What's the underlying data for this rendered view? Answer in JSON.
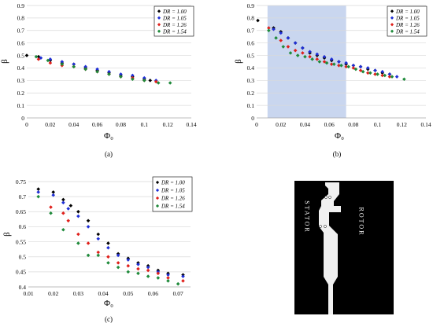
{
  "chart_data": [
    {
      "type": "scatter",
      "caption": "(a)",
      "xlabel": "Φ₀",
      "ylabel": "β",
      "xlim": [
        0,
        0.14
      ],
      "ylim": [
        0,
        0.9
      ],
      "xticks": [
        "0",
        "0.02",
        "0.04",
        "0.06",
        "0.08",
        "0.1",
        "0.12",
        "0.14"
      ],
      "yticks": [
        "0",
        "0.1",
        "0.2",
        "0.3",
        "0.4",
        "0.5",
        "0.6",
        "0.7",
        "0.8",
        "0.9"
      ],
      "grid": "horizontal",
      "legend_position": "top-right",
      "series": [
        {
          "name": "DR = 1.00",
          "color": "#000000",
          "points": [
            [
              0.0,
              0.5
            ],
            [
              0.01,
              0.49
            ],
            [
              0.02,
              0.46
            ],
            [
              0.03,
              0.44
            ],
            [
              0.04,
              0.43
            ],
            [
              0.05,
              0.4
            ],
            [
              0.06,
              0.38
            ],
            [
              0.07,
              0.36
            ],
            [
              0.08,
              0.34
            ],
            [
              0.09,
              0.33
            ],
            [
              0.1,
              0.31
            ],
            [
              0.105,
              0.3
            ]
          ]
        },
        {
          "name": "DR = 1.05",
          "color": "#1f2fd6",
          "points": [
            [
              0.012,
              0.48
            ],
            [
              0.02,
              0.47
            ],
            [
              0.03,
              0.45
            ],
            [
              0.04,
              0.43
            ],
            [
              0.05,
              0.41
            ],
            [
              0.06,
              0.39
            ],
            [
              0.07,
              0.37
            ],
            [
              0.08,
              0.35
            ],
            [
              0.09,
              0.34
            ],
            [
              0.1,
              0.32
            ],
            [
              0.11,
              0.3
            ]
          ]
        },
        {
          "name": "DR = 1.26",
          "color": "#e0201b",
          "points": [
            [
              0.01,
              0.47
            ],
            [
              0.02,
              0.44
            ],
            [
              0.03,
              0.42
            ],
            [
              0.04,
              0.41
            ],
            [
              0.05,
              0.39
            ],
            [
              0.06,
              0.37
            ],
            [
              0.07,
              0.35
            ],
            [
              0.08,
              0.33
            ],
            [
              0.09,
              0.32
            ],
            [
              0.1,
              0.3
            ],
            [
              0.11,
              0.29
            ]
          ]
        },
        {
          "name": "DR = 1.54",
          "color": "#1e8a3a",
          "points": [
            [
              0.008,
              0.49
            ],
            [
              0.018,
              0.46
            ],
            [
              0.03,
              0.43
            ],
            [
              0.04,
              0.41
            ],
            [
              0.05,
              0.39
            ],
            [
              0.06,
              0.37
            ],
            [
              0.07,
              0.35
            ],
            [
              0.08,
              0.33
            ],
            [
              0.09,
              0.31
            ],
            [
              0.1,
              0.3
            ],
            [
              0.112,
              0.28
            ],
            [
              0.122,
              0.28
            ]
          ]
        }
      ]
    },
    {
      "type": "scatter",
      "caption": "(b)",
      "xlabel": "Φ₀",
      "ylabel": "β",
      "xlim": [
        0,
        0.14
      ],
      "ylim": [
        0,
        0.9
      ],
      "xticks": [
        "0",
        "0.02",
        "0.04",
        "0.06",
        "0.08",
        "0.1",
        "0.12",
        "0.14"
      ],
      "yticks": [
        "0",
        "0.1",
        "0.2",
        "0.3",
        "0.4",
        "0.5",
        "0.6",
        "0.7",
        "0.8",
        "0.9"
      ],
      "grid": "horizontal",
      "legend_position": "top-right",
      "highlight_xrange": [
        0.009,
        0.074
      ],
      "highlight_color": "#c9d6ef",
      "series": [
        {
          "name": "DR = 1.00",
          "color": "#000000",
          "points": [
            [
              0.001,
              0.78
            ],
            [
              0.014,
              0.72
            ],
            [
              0.02,
              0.69
            ],
            [
              0.026,
              0.64
            ],
            [
              0.032,
              0.6
            ],
            [
              0.038,
              0.56
            ],
            [
              0.044,
              0.52
            ],
            [
              0.05,
              0.5
            ],
            [
              0.056,
              0.48
            ],
            [
              0.062,
              0.46
            ],
            [
              0.068,
              0.45
            ],
            [
              0.074,
              0.43
            ],
            [
              0.08,
              0.42
            ],
            [
              0.086,
              0.41
            ],
            [
              0.092,
              0.39
            ],
            [
              0.098,
              0.38
            ],
            [
              0.104,
              0.36
            ],
            [
              0.11,
              0.35
            ]
          ]
        },
        {
          "name": "DR = 1.05",
          "color": "#1f2fd6",
          "points": [
            [
              0.014,
              0.71
            ],
            [
              0.02,
              0.68
            ],
            [
              0.026,
              0.64
            ],
            [
              0.032,
              0.6
            ],
            [
              0.038,
              0.56
            ],
            [
              0.044,
              0.53
            ],
            [
              0.05,
              0.51
            ],
            [
              0.056,
              0.49
            ],
            [
              0.062,
              0.47
            ],
            [
              0.068,
              0.45
            ],
            [
              0.074,
              0.44
            ],
            [
              0.08,
              0.42
            ],
            [
              0.086,
              0.41
            ],
            [
              0.092,
              0.4
            ],
            [
              0.098,
              0.38
            ],
            [
              0.104,
              0.37
            ],
            [
              0.11,
              0.35
            ],
            [
              0.116,
              0.33
            ]
          ]
        },
        {
          "name": "DR = 1.26",
          "color": "#e0201b",
          "points": [
            [
              0.01,
              0.72
            ],
            [
              0.02,
              0.62
            ],
            [
              0.026,
              0.57
            ],
            [
              0.032,
              0.54
            ],
            [
              0.038,
              0.52
            ],
            [
              0.044,
              0.49
            ],
            [
              0.05,
              0.47
            ],
            [
              0.056,
              0.45
            ],
            [
              0.062,
              0.43
            ],
            [
              0.068,
              0.42
            ],
            [
              0.074,
              0.41
            ],
            [
              0.08,
              0.4
            ],
            [
              0.086,
              0.38
            ],
            [
              0.092,
              0.36
            ],
            [
              0.098,
              0.35
            ],
            [
              0.104,
              0.34
            ],
            [
              0.11,
              0.33
            ]
          ]
        },
        {
          "name": "DR = 1.54",
          "color": "#1e8a3a",
          "points": [
            [
              0.01,
              0.7
            ],
            [
              0.016,
              0.64
            ],
            [
              0.022,
              0.57
            ],
            [
              0.028,
              0.52
            ],
            [
              0.034,
              0.5
            ],
            [
              0.04,
              0.49
            ],
            [
              0.046,
              0.47
            ],
            [
              0.052,
              0.45
            ],
            [
              0.058,
              0.44
            ],
            [
              0.064,
              0.43
            ],
            [
              0.07,
              0.42
            ],
            [
              0.076,
              0.41
            ],
            [
              0.082,
              0.39
            ],
            [
              0.088,
              0.37
            ],
            [
              0.094,
              0.36
            ],
            [
              0.1,
              0.35
            ],
            [
              0.106,
              0.34
            ],
            [
              0.112,
              0.33
            ],
            [
              0.122,
              0.31
            ]
          ]
        }
      ]
    },
    {
      "type": "scatter",
      "caption": "(c)",
      "xlabel": "Φ₀",
      "ylabel": "β",
      "xlim": [
        0.01,
        0.075
      ],
      "ylim": [
        0.4,
        0.75
      ],
      "xticks": [
        "0.01",
        "0.02",
        "0.03",
        "0.04",
        "0.05",
        "0.06",
        "0.07"
      ],
      "yticks": [
        "0.4",
        "0.45",
        "0.5",
        "0.55",
        "0.6",
        "0.65",
        "0.7",
        "0.75"
      ],
      "grid": "horizontal",
      "legend_position": "top-right",
      "series": [
        {
          "name": "DR = 1.00",
          "color": "#000000",
          "points": [
            [
              0.014,
              0.725
            ],
            [
              0.02,
              0.715
            ],
            [
              0.024,
              0.69
            ],
            [
              0.027,
              0.67
            ],
            [
              0.03,
              0.65
            ],
            [
              0.034,
              0.62
            ],
            [
              0.038,
              0.575
            ],
            [
              0.042,
              0.545
            ],
            [
              0.046,
              0.51
            ],
            [
              0.05,
              0.495
            ],
            [
              0.054,
              0.48
            ],
            [
              0.058,
              0.47
            ],
            [
              0.062,
              0.455
            ],
            [
              0.066,
              0.445
            ],
            [
              0.072,
              0.44
            ]
          ]
        },
        {
          "name": "DR = 1.05",
          "color": "#1f2fd6",
          "points": [
            [
              0.014,
              0.715
            ],
            [
              0.02,
              0.705
            ],
            [
              0.024,
              0.68
            ],
            [
              0.026,
              0.66
            ],
            [
              0.03,
              0.635
            ],
            [
              0.034,
              0.6
            ],
            [
              0.038,
              0.56
            ],
            [
              0.042,
              0.53
            ],
            [
              0.046,
              0.505
            ],
            [
              0.05,
              0.49
            ],
            [
              0.054,
              0.475
            ],
            [
              0.058,
              0.465
            ],
            [
              0.062,
              0.45
            ],
            [
              0.066,
              0.44
            ],
            [
              0.072,
              0.435
            ]
          ]
        },
        {
          "name": "DR = 1.26",
          "color": "#e0201b",
          "points": [
            [
              0.019,
              0.665
            ],
            [
              0.024,
              0.645
            ],
            [
              0.026,
              0.62
            ],
            [
              0.03,
              0.575
            ],
            [
              0.034,
              0.545
            ],
            [
              0.038,
              0.515
            ],
            [
              0.042,
              0.5
            ],
            [
              0.046,
              0.48
            ],
            [
              0.05,
              0.47
            ],
            [
              0.054,
              0.46
            ],
            [
              0.058,
              0.455
            ],
            [
              0.062,
              0.445
            ],
            [
              0.066,
              0.43
            ],
            [
              0.072,
              0.42
            ]
          ]
        },
        {
          "name": "DR = 1.54",
          "color": "#1e8a3a",
          "points": [
            [
              0.014,
              0.7
            ],
            [
              0.019,
              0.645
            ],
            [
              0.024,
              0.59
            ],
            [
              0.03,
              0.545
            ],
            [
              0.034,
              0.505
            ],
            [
              0.038,
              0.505
            ],
            [
              0.042,
              0.48
            ],
            [
              0.046,
              0.465
            ],
            [
              0.05,
              0.45
            ],
            [
              0.054,
              0.445
            ],
            [
              0.058,
              0.435
            ],
            [
              0.062,
              0.43
            ],
            [
              0.066,
              0.42
            ],
            [
              0.07,
              0.41
            ]
          ]
        }
      ]
    }
  ],
  "diagram": {
    "left_label": "STATOR",
    "right_label": "ROTOR",
    "background": "#000000",
    "fluid_color": "#f0f0f0"
  }
}
